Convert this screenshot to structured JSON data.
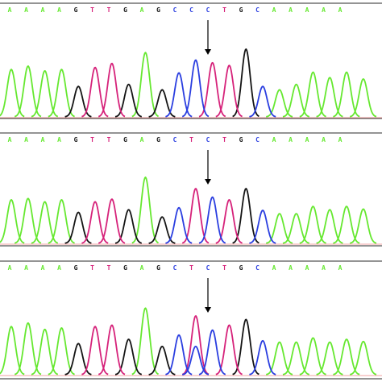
{
  "colors": {
    "A": "#66e830",
    "C": "#2a3ee0",
    "G": "#141414",
    "T": "#d6227a",
    "frame": "#555555",
    "baseline_red": "#e03030"
  },
  "arrow_column": 8,
  "panels": [
    {
      "sequence": [
        "A",
        "A",
        "A",
        "A",
        "G",
        "T",
        "T",
        "G",
        "A",
        "G",
        "C",
        "C",
        "C",
        "T",
        "G",
        "C",
        "A",
        "A",
        "A",
        "A",
        "A"
      ],
      "peaks": [
        [
          0.7,
          0.75,
          0.68,
          0.7,
          0.45,
          0.73,
          0.79,
          0.48,
          0.95,
          0.4,
          0.65,
          0.84,
          0.8,
          0.76,
          1.0,
          0.45,
          0.4,
          0.48,
          0.66,
          0.58,
          0.66,
          0.56
        ],
        null
      ]
    },
    {
      "sequence": [
        "A",
        "A",
        "A",
        "A",
        "G",
        "T",
        "T",
        "G",
        "A",
        "G",
        "C",
        "T",
        "C",
        "T",
        "G",
        "C",
        "A",
        "A",
        "A",
        "A",
        "A"
      ],
      "peaks": [
        [
          0.66,
          0.68,
          0.63,
          0.66,
          0.47,
          0.63,
          0.67,
          0.51,
          1.0,
          0.4,
          0.54,
          0.83,
          0.7,
          0.66,
          0.83,
          0.5,
          0.45,
          0.45,
          0.56,
          0.51,
          0.56,
          0.52
        ],
        null
      ]
    },
    {
      "sequence": [
        "A",
        "A",
        "A",
        "A",
        "G",
        "T",
        "T",
        "G",
        "A",
        "G",
        "C",
        "T",
        "C",
        "T",
        "G",
        "C",
        "A",
        "A",
        "A",
        "A",
        "A"
      ],
      "peaks": [
        [
          0.68,
          0.73,
          0.64,
          0.66,
          0.44,
          0.68,
          0.7,
          0.5,
          0.94,
          0.4,
          0.56,
          0.83,
          0.63,
          0.7,
          0.78,
          0.48,
          0.46,
          0.46,
          0.52,
          0.46,
          0.5,
          0.47
        ],
        [
          11,
          0.4
        ]
      ]
    }
  ]
}
